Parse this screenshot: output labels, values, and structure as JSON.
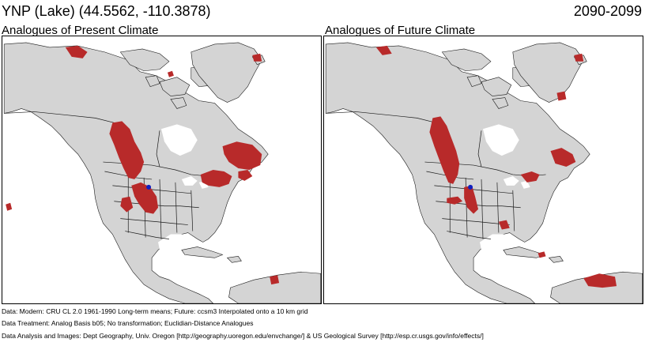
{
  "header": {
    "site": "YNP (Lake)  (44.5562, -110.3878)",
    "period": "2090-2099"
  },
  "panels": [
    {
      "title": "Analogues of Present Climate"
    },
    {
      "title": "Analogues of Future Climate"
    }
  ],
  "footer": {
    "data": "Data:  Modern: CRU CL 2.0 1961-1990 Long-term means; Future: ccsm3 Interpolated onto a 10 km grid",
    "treatment": "Data Treatment:  Analog Basis b05; No transformation; Euclidian-Distance Analogues",
    "analysis": "Data Analysis and Images:  Dept Geography, Univ. Oregon [http://geography.uoregon.edu/envchange/] & US Geological Survey [http://esp.cr.usgs.gov/info/effects/]"
  },
  "colors": {
    "land": "#d4d4d4",
    "analog": "#b82a2a",
    "site_marker": "#1020c0",
    "borders": "#1a1a1a"
  },
  "icons": {
    "site_marker": "site-location-marker"
  }
}
